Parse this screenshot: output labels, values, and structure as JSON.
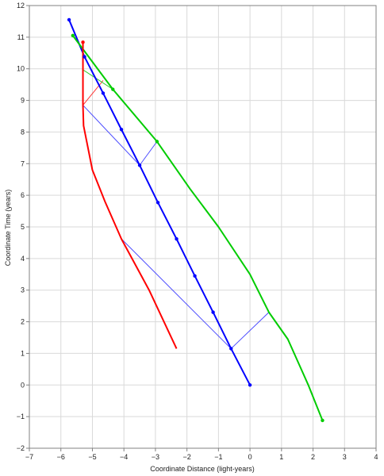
{
  "chart_data": {
    "type": "line",
    "xlabel": "Coordinate Distance (light-years)",
    "ylabel": "Coordinate Time (years)",
    "xlim": [
      -7,
      4
    ],
    "ylim": [
      -2,
      12
    ],
    "x_ticks": [
      -7,
      -6,
      -5,
      -4,
      -3,
      -2,
      -1,
      0,
      1,
      2,
      3,
      4
    ],
    "y_ticks": [
      -2,
      -1,
      0,
      1,
      2,
      3,
      4,
      5,
      6,
      7,
      8,
      9,
      10,
      11,
      12
    ],
    "grid": true,
    "series": [
      {
        "color": "#0000ff",
        "width": 2,
        "marker_color": "#0000ff",
        "points": [
          [
            0,
            0
          ],
          [
            -0.6,
            1.15
          ],
          [
            -1.17,
            2.3
          ],
          [
            -1.75,
            3.45
          ],
          [
            -2.33,
            4.62
          ],
          [
            -2.92,
            5.77
          ],
          [
            -3.5,
            6.95
          ],
          [
            -4.08,
            8.08
          ],
          [
            -4.66,
            9.23
          ],
          [
            -5.25,
            10.38
          ],
          [
            -5.74,
            11.55
          ]
        ],
        "markers": [
          [
            0,
            0
          ],
          [
            -0.6,
            1.15
          ],
          [
            -1.17,
            2.3
          ],
          [
            -1.75,
            3.45
          ],
          [
            -2.33,
            4.62
          ],
          [
            -2.92,
            5.77
          ],
          [
            -3.5,
            6.95
          ],
          [
            -4.08,
            8.08
          ],
          [
            -4.66,
            9.23
          ],
          [
            -5.25,
            10.38
          ],
          [
            -5.74,
            11.55
          ]
        ]
      },
      {
        "color": "#00cc00",
        "width": 2,
        "marker_color": "#00cc00",
        "points": [
          [
            2.3,
            -1.12
          ],
          [
            1.85,
            0
          ],
          [
            1.2,
            1.45
          ],
          [
            0.6,
            2.3
          ],
          [
            0,
            3.5
          ],
          [
            -1,
            5
          ],
          [
            -1.9,
            6.2
          ],
          [
            -2.95,
            7.7
          ],
          [
            -4.35,
            9.35
          ],
          [
            -5.62,
            11.05
          ]
        ],
        "markers": [
          [
            2.3,
            -1.12
          ],
          [
            -2.95,
            7.7
          ],
          [
            -4.35,
            9.35
          ],
          [
            -5.62,
            11.05
          ]
        ]
      },
      {
        "color": "#ff0000",
        "width": 2,
        "marker_color": "#ff0000",
        "points": [
          [
            -2.33,
            1.15
          ],
          [
            -3.2,
            3
          ],
          [
            -4.08,
            4.62
          ],
          [
            -4.6,
            5.8
          ],
          [
            -5,
            6.8
          ],
          [
            -5.2,
            7.8
          ],
          [
            -5.28,
            8.2
          ],
          [
            -5.3,
            8.85
          ],
          [
            -5.3,
            9.8
          ],
          [
            -5.3,
            10.84
          ]
        ],
        "markers": [
          [
            -5.3,
            10.84
          ]
        ]
      }
    ],
    "thin_lines": [
      {
        "color": "#4d4dff",
        "points": [
          [
            -4.08,
            4.62
          ],
          [
            -0.6,
            1.15
          ],
          [
            0.6,
            2.3
          ]
        ]
      },
      {
        "color": "#4d4dff",
        "points": [
          [
            -5.3,
            8.85
          ],
          [
            -3.5,
            6.95
          ],
          [
            -2.95,
            7.7
          ]
        ]
      },
      {
        "color": "#ff3333",
        "points": [
          [
            -5.3,
            8.85
          ],
          [
            -4.66,
            9.63
          ]
        ]
      },
      {
        "color": "#33cc33",
        "points": [
          [
            -5.3,
            9.97
          ],
          [
            -4.35,
            9.35
          ]
        ]
      }
    ]
  }
}
